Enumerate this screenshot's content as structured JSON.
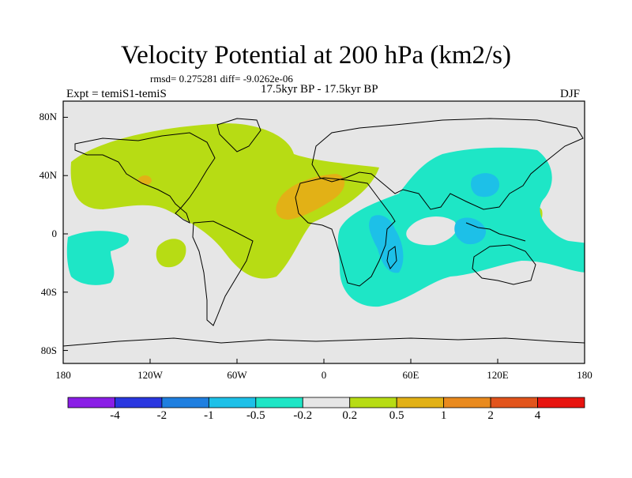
{
  "title": "Velocity Potential at 200 hPa (km2/s)",
  "stats": "rmsd= 0.275281  diff= -9.0262e-06",
  "left_label": "Expt = temiS1-temiS",
  "center_label": "17.5kyr BP - 17.5kyr BP",
  "right_label": "DJF",
  "lat_ticks": [
    {
      "label": "80N",
      "lat": 80
    },
    {
      "label": "40N",
      "lat": 40
    },
    {
      "label": "0",
      "lat": 0
    },
    {
      "label": "40S",
      "lat": -40
    },
    {
      "label": "80S",
      "lat": -80
    }
  ],
  "lon_ticks": [
    {
      "label": "180",
      "lon": -180
    },
    {
      "label": "120W",
      "lon": -120
    },
    {
      "label": "60W",
      "lon": -60
    },
    {
      "label": "0",
      "lon": 0
    },
    {
      "label": "60E",
      "lon": 60
    },
    {
      "label": "120E",
      "lon": 120
    },
    {
      "label": "180",
      "lon": 180
    }
  ],
  "colorbar": {
    "colors": [
      "#8a1ee6",
      "#2a37e0",
      "#1f7fe0",
      "#1dc0e8",
      "#1ee6c6",
      "#e6e6e6",
      "#b7dc14",
      "#e2b116",
      "#e98a1e",
      "#e2541c",
      "#e8140f"
    ],
    "labels": [
      "-4",
      "-2",
      "-1",
      "-0.5",
      "-0.2",
      "0.2",
      "0.5",
      "1",
      "2",
      "4"
    ]
  },
  "colors": {
    "background": "#e6e6e6",
    "positive_02": "#b7dc14",
    "positive_05": "#e2b116",
    "negative_02": "#1ee6c6",
    "negative_05": "#1dc0e8"
  }
}
